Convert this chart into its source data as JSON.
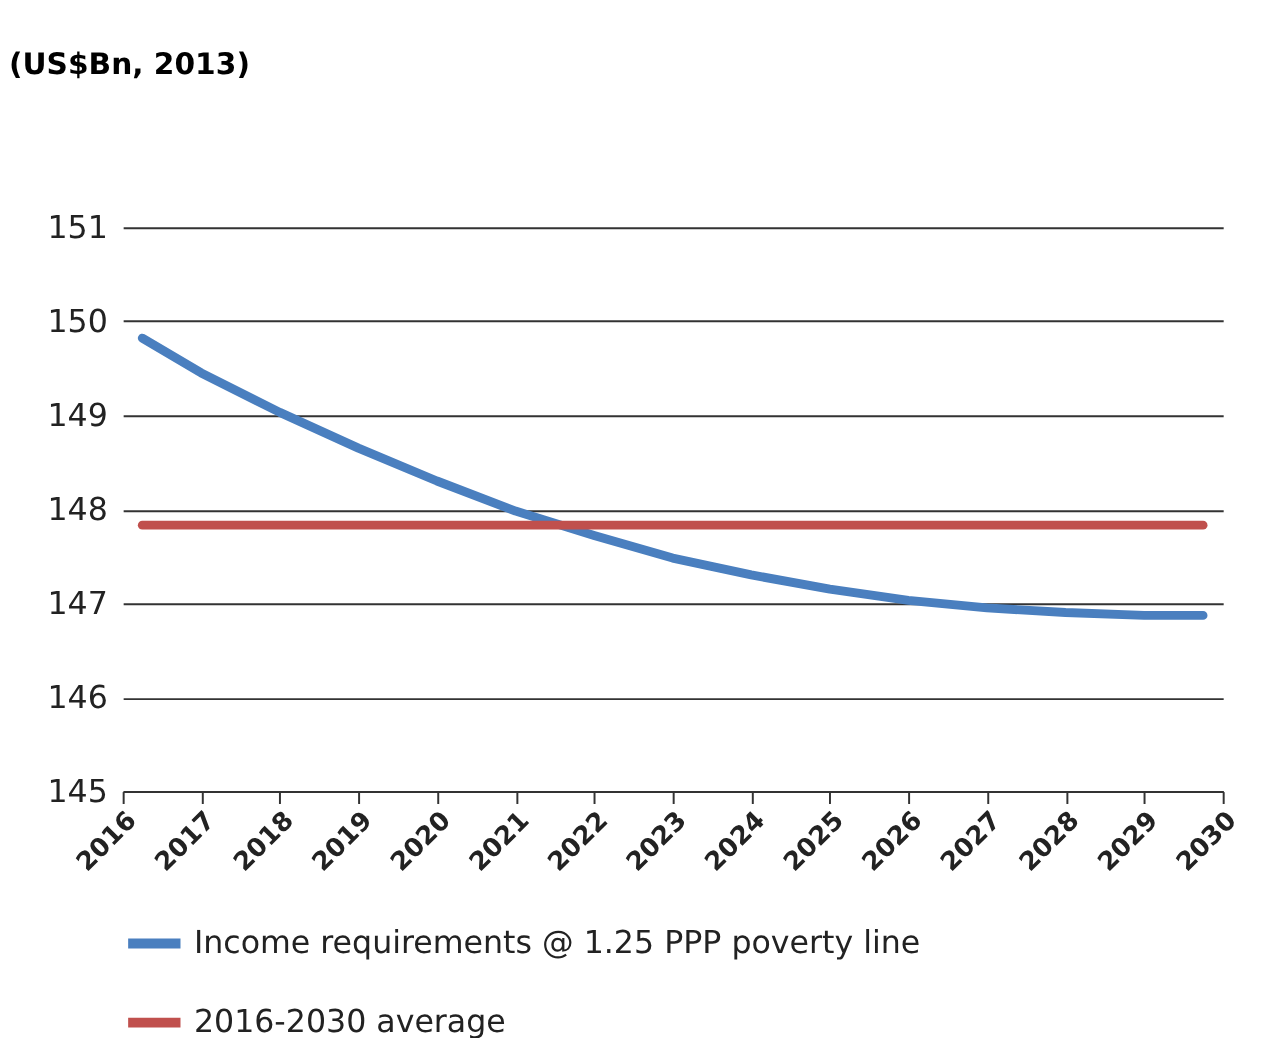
{
  "chart_data": {
    "type": "line",
    "ylabel": "(US$Bn, 2013)",
    "xlim": [
      2016,
      2030
    ],
    "xticks": [
      2016,
      2017,
      2018,
      2019,
      2020,
      2021,
      2022,
      2023,
      2024,
      2025,
      2026,
      2027,
      2028,
      2029,
      2030
    ],
    "ylim": [
      145,
      151
    ],
    "yticks": [
      145,
      146,
      147,
      148,
      149,
      150,
      151
    ],
    "grid": "y",
    "legend": "bottom",
    "series": [
      {
        "name": "Income requirements @ 1.25 PPP poverty line",
        "color": "#4a7fbf",
        "x": [
          2016.25,
          2017,
          2018,
          2019,
          2020,
          2021,
          2022,
          2023,
          2024,
          2025,
          2026,
          2027,
          2028,
          2029,
          2029.75
        ],
        "values": [
          149.82,
          149.45,
          149.03,
          148.65,
          148.3,
          147.98,
          147.72,
          147.48,
          147.3,
          147.15,
          147.03,
          146.95,
          146.9,
          146.87,
          146.87
        ]
      },
      {
        "name": "2016-2030 average",
        "color": "#c0504d",
        "x": [
          2016.25,
          2029.75
        ],
        "values": [
          147.83,
          147.83
        ]
      }
    ]
  }
}
